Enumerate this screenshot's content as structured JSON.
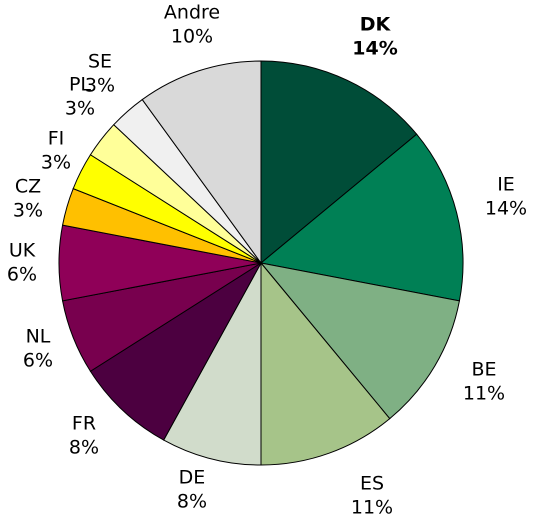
{
  "chart_data": {
    "type": "pie",
    "title": "",
    "slices": [
      {
        "label": "DK",
        "value": 14,
        "display": "14%",
        "color": "#004D38",
        "bold": true
      },
      {
        "label": "IE",
        "value": 14,
        "display": "14%",
        "color": "#008055",
        "bold": false
      },
      {
        "label": "BE",
        "value": 11,
        "display": "11%",
        "color": "#7FB084",
        "bold": false
      },
      {
        "label": "ES",
        "value": 11,
        "display": "11%",
        "color": "#A6C489",
        "bold": false
      },
      {
        "label": "DE",
        "value": 8,
        "display": "8%",
        "color": "#D1DCCB",
        "bold": false
      },
      {
        "label": "FR",
        "value": 8,
        "display": "8%",
        "color": "#4C0040",
        "bold": false
      },
      {
        "label": "NL",
        "value": 6,
        "display": "6%",
        "color": "#78004E",
        "bold": false
      },
      {
        "label": "UK",
        "value": 6,
        "display": "6%",
        "color": "#8F0058",
        "bold": false
      },
      {
        "label": "CZ",
        "value": 3,
        "display": "3%",
        "color": "#FFC000",
        "bold": false
      },
      {
        "label": "FI",
        "value": 3,
        "display": "3%",
        "color": "#FFFF00",
        "bold": false
      },
      {
        "label": "PL",
        "value": 3,
        "display": "3%",
        "color": "#FFFF99",
        "bold": false
      },
      {
        "label": "SE",
        "value": 3,
        "display": "3%",
        "color": "#F0F0F0",
        "bold": false
      },
      {
        "label": "Andre",
        "value": 10,
        "display": "10%",
        "color": "#D9D9D9",
        "bold": false
      }
    ],
    "start_angle": "12 o'clock",
    "direction": "clockwise",
    "legend": "none"
  }
}
